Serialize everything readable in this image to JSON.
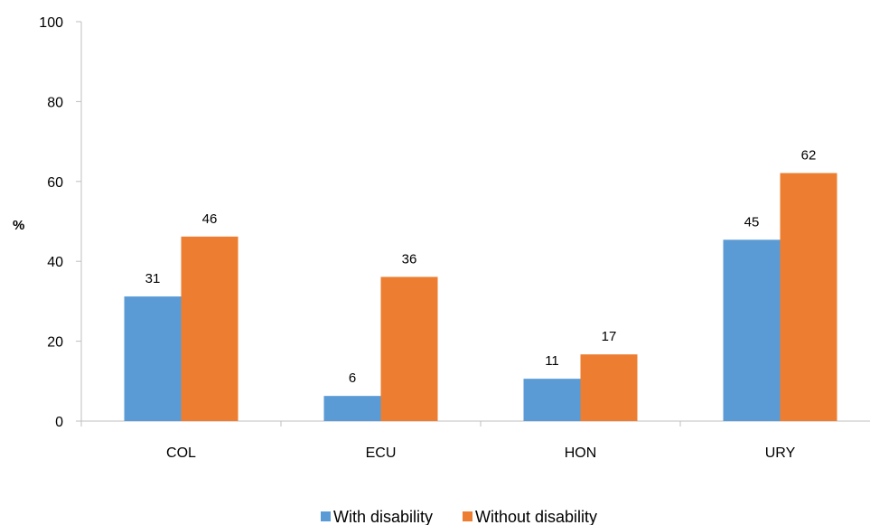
{
  "chart_data": {
    "type": "bar",
    "categories": [
      "COL",
      "ECU",
      "HON",
      "URY"
    ],
    "series": [
      {
        "name": "With disability",
        "values": [
          31.2,
          6.3,
          10.6,
          45.4
        ],
        "labels": [
          "31",
          "6",
          "11",
          "45"
        ],
        "color": "#5b9bd5"
      },
      {
        "name": "Without disability",
        "values": [
          46.2,
          36.1,
          16.7,
          62.1
        ],
        "labels": [
          "46",
          "36",
          "17",
          "62"
        ],
        "color": "#ed7d31"
      }
    ],
    "ylabel": "%",
    "ylim": [
      0,
      100
    ],
    "yticks": [
      "0",
      "20",
      "40",
      "60",
      "80",
      "100"
    ],
    "grid": false,
    "legend": "bottom"
  }
}
